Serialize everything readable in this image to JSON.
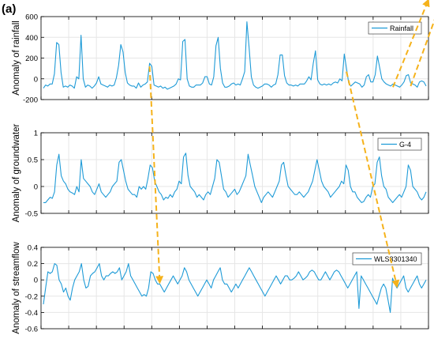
{
  "panel_letter": "(a)",
  "colors": {
    "series": "#1F9BD7",
    "arrow": "#F5B21B",
    "axis": "#000000",
    "grid": "#e6e6e6"
  },
  "chart_data": [
    {
      "type": "line",
      "ylabel": "Anomaly of rainfall",
      "ylim": [
        -200,
        600
      ],
      "yticks": [
        -200,
        0,
        200,
        400,
        600
      ],
      "grid": true,
      "legend": "top-right",
      "series": [
        {
          "name": "Rainfall",
          "values": [
            -90,
            -60,
            -70,
            -50,
            -50,
            50,
            350,
            330,
            60,
            -80,
            -70,
            -80,
            -60,
            -70,
            -90,
            20,
            0,
            420,
            0,
            -80,
            -60,
            -70,
            -90,
            -70,
            -40,
            20,
            -50,
            -60,
            -70,
            -80,
            -60,
            -70,
            -60,
            10,
            130,
            330,
            260,
            60,
            -40,
            -60,
            -70,
            -70,
            -90,
            -40,
            -80,
            -60,
            -50,
            -30,
            150,
            120,
            -60,
            -70,
            -80,
            -70,
            -90,
            -80,
            -100,
            -90,
            -80,
            -70,
            -50,
            0,
            -10,
            360,
            380,
            0,
            -70,
            -80,
            -80,
            -60,
            -60,
            -60,
            -40,
            20,
            20,
            -50,
            -60,
            20,
            320,
            400,
            100,
            -40,
            -80,
            -80,
            -70,
            -50,
            -40,
            -60,
            -50,
            -60,
            0,
            70,
            550,
            300,
            20,
            -60,
            -80,
            -90,
            -80,
            -70,
            -50,
            -50,
            -60,
            -80,
            -60,
            -50,
            40,
            230,
            230,
            30,
            -40,
            -60,
            -60,
            -70,
            -60,
            -70,
            -50,
            -50,
            -50,
            -20,
            20,
            -10,
            150,
            270,
            -10,
            -50,
            -60,
            -50,
            -60,
            -50,
            -60,
            -40,
            -30,
            -40,
            0,
            -20,
            240,
            100,
            -40,
            -70,
            -50,
            -30,
            -40,
            -50,
            -80,
            -60,
            20,
            40,
            -30,
            -30,
            40,
            220,
            110,
            0,
            -30,
            -50,
            -60,
            -70,
            -50,
            -60,
            -70,
            -80,
            -60,
            -30,
            30,
            40,
            -40,
            -50,
            -60,
            -80,
            -30,
            -20,
            -30,
            -70
          ]
        }
      ]
    },
    {
      "type": "line",
      "ylabel": "Anomaly of groundwater",
      "ylim": [
        -0.5,
        1
      ],
      "yticks": [
        -0.5,
        0,
        0.5,
        1
      ],
      "grid": true,
      "legend": "top-right",
      "series": [
        {
          "name": "G-4",
          "values": [
            -0.3,
            -0.3,
            -0.25,
            -0.2,
            -0.22,
            -0.1,
            0.4,
            0.6,
            0.2,
            0.1,
            0.05,
            -0.05,
            -0.1,
            -0.12,
            -0.15,
            0.0,
            -0.1,
            0.5,
            0.15,
            0.1,
            0.05,
            0.0,
            -0.1,
            -0.15,
            -0.05,
            0.05,
            -0.1,
            -0.15,
            -0.2,
            -0.15,
            -0.1,
            0.0,
            0.05,
            0.1,
            0.45,
            0.5,
            0.3,
            0.1,
            -0.05,
            -0.1,
            -0.15,
            -0.15,
            -0.2,
            0.0,
            -0.05,
            0.0,
            -0.05,
            0.15,
            0.4,
            0.35,
            0.1,
            0.0,
            -0.1,
            -0.15,
            -0.25,
            -0.2,
            -0.22,
            -0.15,
            -0.2,
            -0.1,
            -0.05,
            0.1,
            0.05,
            0.55,
            0.62,
            0.2,
            0.0,
            -0.05,
            -0.1,
            -0.2,
            -0.15,
            -0.2,
            -0.25,
            -0.15,
            -0.1,
            -0.15,
            0.0,
            0.15,
            0.5,
            0.45,
            0.2,
            -0.05,
            -0.1,
            -0.2,
            -0.15,
            -0.1,
            -0.05,
            -0.15,
            -0.1,
            0.0,
            0.1,
            0.2,
            0.6,
            0.4,
            0.2,
            0.0,
            -0.1,
            -0.2,
            -0.3,
            -0.2,
            -0.15,
            -0.1,
            -0.15,
            -0.2,
            -0.1,
            0.0,
            0.1,
            0.4,
            0.45,
            0.2,
            0.0,
            -0.05,
            -0.1,
            -0.15,
            -0.15,
            -0.1,
            -0.15,
            -0.2,
            -0.15,
            -0.1,
            0.0,
            0.1,
            0.3,
            0.5,
            0.3,
            0.1,
            0.0,
            -0.05,
            -0.1,
            -0.2,
            -0.15,
            -0.1,
            -0.05,
            0.0,
            0.1,
            0.05,
            0.4,
            0.3,
            0.0,
            -0.1,
            -0.1,
            -0.2,
            -0.25,
            -0.3,
            -0.28,
            -0.2,
            -0.15,
            -0.2,
            0.0,
            0.05,
            0.45,
            0.55,
            0.2,
            0.0,
            -0.05,
            -0.2,
            -0.25,
            -0.3,
            -0.25,
            -0.2,
            -0.15,
            -0.2,
            -0.1,
            0.0,
            0.4,
            0.3,
            0.0,
            -0.05,
            -0.1,
            -0.2,
            -0.25,
            -0.2,
            -0.1
          ]
        }
      ]
    },
    {
      "type": "line",
      "ylabel": "Anomaly of streamflow",
      "ylim": [
        -0.6,
        0.4
      ],
      "yticks": [
        -0.6,
        -0.4,
        -0.2,
        0,
        0.2,
        0.4
      ],
      "grid": true,
      "legend": "top-right",
      "series": [
        {
          "name": "WLS3301340",
          "values": [
            -0.3,
            -0.1,
            0.1,
            0.08,
            0.1,
            0.2,
            0.18,
            0.0,
            -0.05,
            -0.15,
            -0.1,
            -0.2,
            -0.25,
            -0.1,
            0.0,
            0.05,
            0.1,
            0.2,
            0.0,
            -0.1,
            -0.08,
            0.05,
            0.08,
            0.1,
            0.15,
            0.2,
            0.05,
            0.0,
            0.05,
            0.05,
            0.08,
            0.1,
            0.08,
            0.1,
            0.15,
            0.0,
            0.05,
            0.1,
            0.2,
            0.05,
            0.0,
            -0.05,
            -0.1,
            -0.15,
            -0.2,
            -0.18,
            -0.2,
            -0.1,
            0.1,
            0.08,
            0.0,
            -0.05,
            -0.05,
            -0.1,
            -0.15,
            -0.1,
            -0.05,
            0.0,
            0.05,
            0.0,
            -0.05,
            0.0,
            0.05,
            0.15,
            0.1,
            0.0,
            -0.05,
            -0.1,
            -0.15,
            -0.2,
            -0.15,
            -0.1,
            -0.05,
            0.0,
            -0.05,
            -0.1,
            0.0,
            0.05,
            0.1,
            0.15,
            0.0,
            -0.05,
            -0.05,
            -0.1,
            -0.15,
            -0.1,
            -0.05,
            -0.1,
            -0.05,
            0.0,
            0.05,
            0.1,
            0.15,
            0.1,
            0.05,
            0.0,
            -0.05,
            -0.1,
            -0.15,
            -0.2,
            -0.15,
            -0.1,
            -0.05,
            0.0,
            0.05,
            0.0,
            -0.05,
            0.0,
            0.05,
            0.05,
            0.0,
            0.0,
            0.02,
            0.05,
            0.1,
            0.05,
            0.0,
            0.02,
            0.05,
            0.1,
            0.12,
            0.1,
            0.05,
            0.0,
            0.0,
            0.05,
            0.1,
            0.05,
            0.0,
            0.05,
            0.1,
            0.12,
            0.1,
            0.05,
            0.0,
            -0.05,
            -0.1,
            -0.05,
            0.0,
            0.05,
            0.1,
            -0.35,
            0.05,
            0.0,
            -0.05,
            -0.1,
            -0.15,
            -0.2,
            -0.25,
            -0.3,
            -0.2,
            -0.1,
            -0.05,
            -0.1,
            -0.25,
            -0.4,
            0.02,
            -0.05,
            -0.1,
            -0.05,
            0.0,
            0.05,
            -0.1,
            -0.15,
            -0.1,
            -0.05,
            0.0,
            0.05,
            -0.05,
            -0.1,
            -0.05,
            0.0
          ]
        }
      ]
    }
  ]
}
